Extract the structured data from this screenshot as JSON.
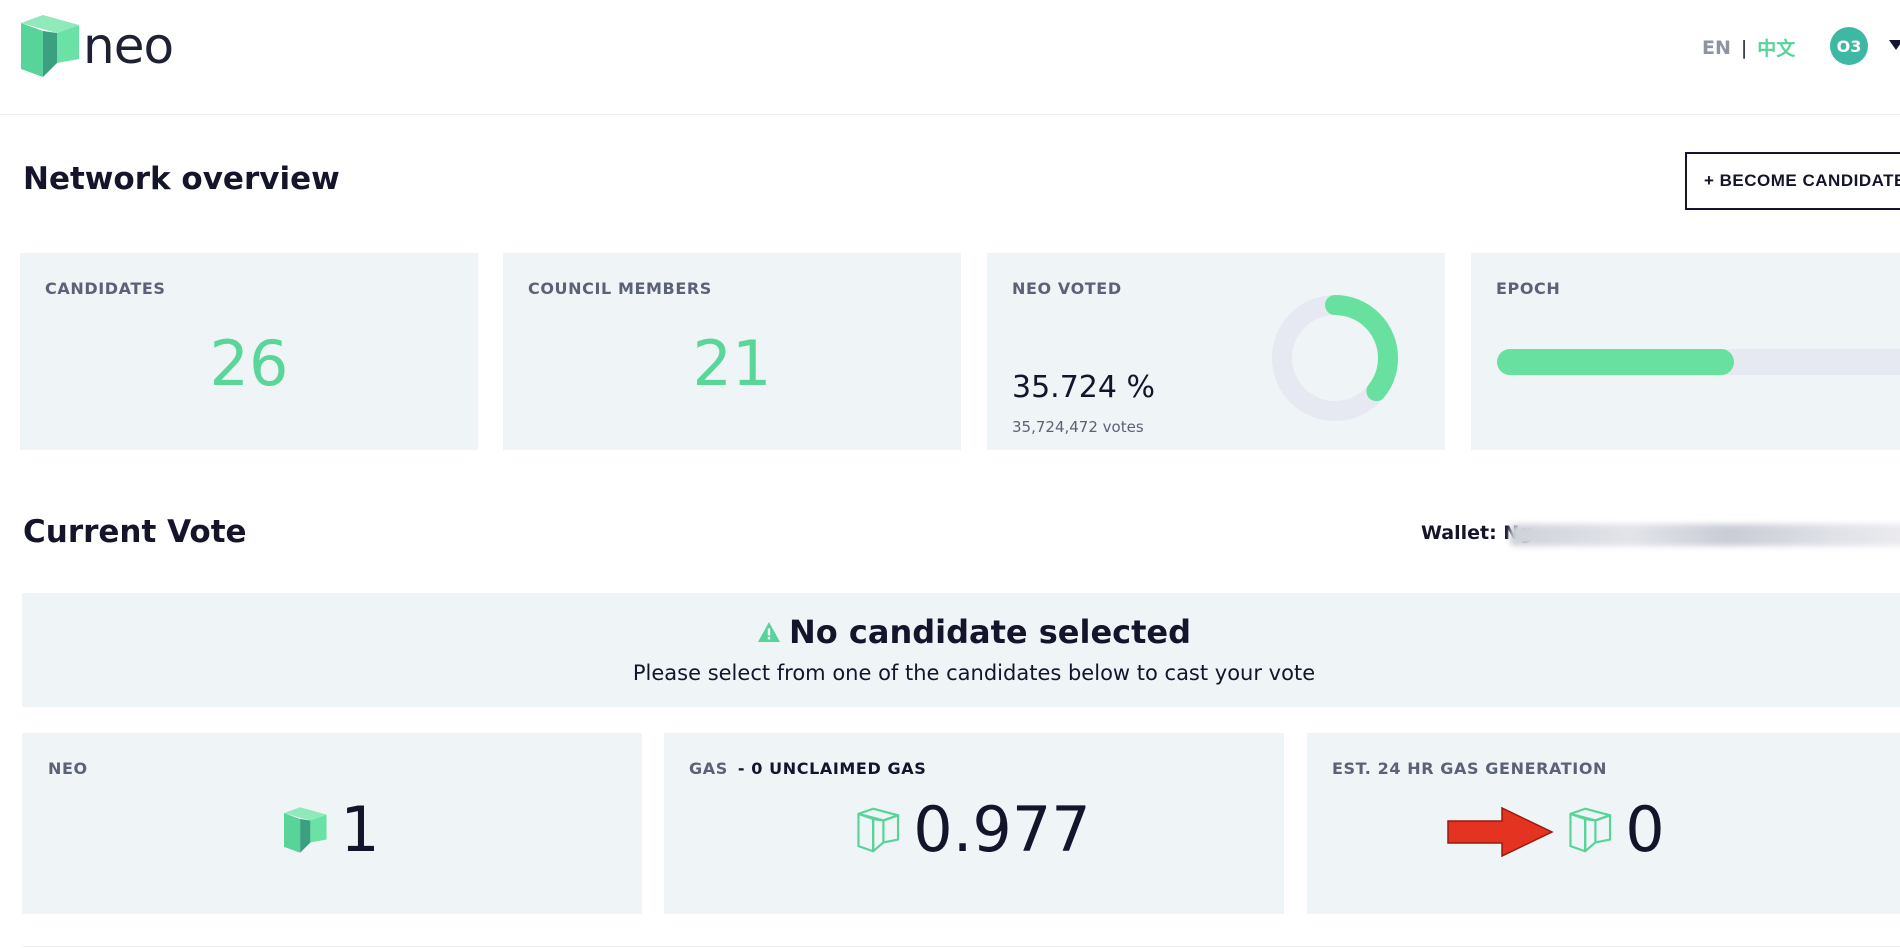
{
  "header": {
    "logo_text": "neo",
    "lang_en": "EN",
    "lang_separator": "|",
    "lang_zh": "中文",
    "avatar_text": "O3",
    "colors": {
      "accent": "#58d49a",
      "avatar": "#3cb8a3"
    }
  },
  "network": {
    "title": "Network overview",
    "become_candidate_label": "+ BECOME CANDIDATE",
    "candidates": {
      "label": "CANDIDATES",
      "value": "26"
    },
    "council": {
      "label": "COUNCIL MEMBERS",
      "value": "21"
    },
    "voted": {
      "label": "NEO VOTED",
      "percent_text": "35.724 %",
      "votes_text": "35,724,472 votes",
      "percent": 35.724
    },
    "epoch": {
      "label": "EPOCH",
      "progress": 0.565
    }
  },
  "vote": {
    "title": "Current Vote",
    "wallet_label": "Wallet: Ng",
    "notice_title": "No candidate selected",
    "notice_sub": "Please select from one of the candidates below to cast your vote"
  },
  "assets": {
    "neo": {
      "label": "NEO",
      "value": "1"
    },
    "gas": {
      "label": "GAS",
      "sub": "- 0 UNCLAIMED GAS",
      "value": "0.977"
    },
    "est": {
      "label": "EST. 24 HR GAS GENERATION",
      "value": "0"
    }
  },
  "icons": [
    "neo-logo-icon",
    "warning-icon",
    "neo-token-icon",
    "gas-token-icon",
    "red-arrow-icon",
    "chevron-down-icon"
  ]
}
